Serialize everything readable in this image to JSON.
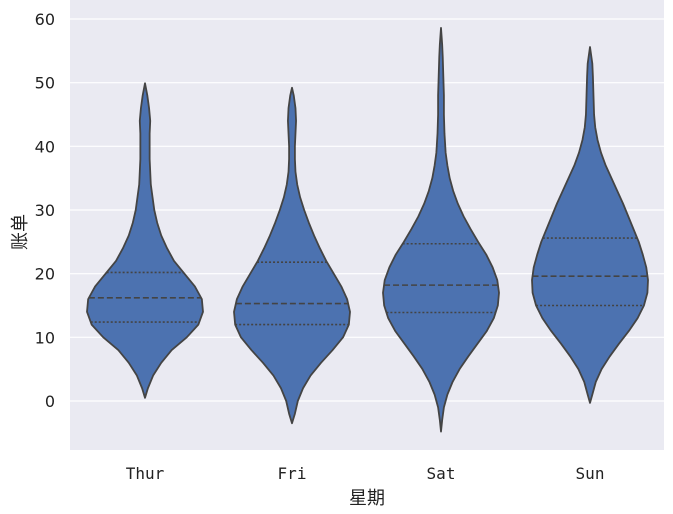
{
  "chart_data": {
    "type": "violin",
    "title": "",
    "xlabel": "星期",
    "ylabel": "账单",
    "categories": [
      "Thur",
      "Fri",
      "Sat",
      "Sun"
    ],
    "ylim": [
      -8,
      62
    ],
    "yticks": [
      0,
      10,
      20,
      30,
      40,
      50,
      60
    ],
    "grid": true,
    "background_color": "#eaeaf2",
    "violin_color": "#4c72b0",
    "edge_color": "#444444",
    "violins": [
      {
        "category": "Thur",
        "min": 0.5,
        "max": 49.9,
        "quartiles": [
          12.4,
          16.2,
          20.2
        ],
        "profile": [
          [
            0.5,
            0.0
          ],
          [
            2.0,
            0.05
          ],
          [
            4.0,
            0.14
          ],
          [
            6.0,
            0.28
          ],
          [
            8.0,
            0.46
          ],
          [
            10.0,
            0.72
          ],
          [
            12.0,
            0.92
          ],
          [
            14.0,
            1.0
          ],
          [
            16.0,
            0.98
          ],
          [
            18.0,
            0.86
          ],
          [
            20.0,
            0.68
          ],
          [
            22.0,
            0.5
          ],
          [
            24.0,
            0.38
          ],
          [
            26.0,
            0.28
          ],
          [
            28.0,
            0.21
          ],
          [
            30.0,
            0.16
          ],
          [
            32.0,
            0.13
          ],
          [
            34.0,
            0.1
          ],
          [
            36.0,
            0.09
          ],
          [
            38.0,
            0.08
          ],
          [
            40.0,
            0.08
          ],
          [
            42.0,
            0.08
          ],
          [
            44.0,
            0.09
          ],
          [
            46.0,
            0.07
          ],
          [
            48.0,
            0.04
          ],
          [
            49.9,
            0.0
          ]
        ]
      },
      {
        "category": "Fri",
        "min": -3.5,
        "max": 49.2,
        "quartiles": [
          12.0,
          15.3,
          21.8
        ],
        "profile": [
          [
            -3.5,
            0.0
          ],
          [
            -2.0,
            0.05
          ],
          [
            0.0,
            0.1
          ],
          [
            2.0,
            0.19
          ],
          [
            4.0,
            0.32
          ],
          [
            6.0,
            0.5
          ],
          [
            8.0,
            0.7
          ],
          [
            10.0,
            0.88
          ],
          [
            12.0,
            0.98
          ],
          [
            14.0,
            1.0
          ],
          [
            16.0,
            0.95
          ],
          [
            18.0,
            0.85
          ],
          [
            20.0,
            0.72
          ],
          [
            22.0,
            0.59
          ],
          [
            24.0,
            0.48
          ],
          [
            26.0,
            0.38
          ],
          [
            28.0,
            0.29
          ],
          [
            30.0,
            0.21
          ],
          [
            32.0,
            0.14
          ],
          [
            34.0,
            0.09
          ],
          [
            36.0,
            0.06
          ],
          [
            38.0,
            0.05
          ],
          [
            40.0,
            0.05
          ],
          [
            42.0,
            0.06
          ],
          [
            44.0,
            0.07
          ],
          [
            46.0,
            0.06
          ],
          [
            48.0,
            0.03
          ],
          [
            49.2,
            0.0
          ]
        ]
      },
      {
        "category": "Sat",
        "min": -4.8,
        "max": 58.6,
        "quartiles": [
          13.9,
          18.2,
          24.7
        ],
        "profile": [
          [
            -4.8,
            0.0
          ],
          [
            -3.0,
            0.02
          ],
          [
            -1.0,
            0.05
          ],
          [
            1.0,
            0.11
          ],
          [
            3.0,
            0.2
          ],
          [
            5.0,
            0.32
          ],
          [
            7.0,
            0.47
          ],
          [
            9.0,
            0.63
          ],
          [
            11.0,
            0.79
          ],
          [
            13.0,
            0.91
          ],
          [
            15.0,
            0.98
          ],
          [
            17.0,
            1.0
          ],
          [
            19.0,
            0.97
          ],
          [
            21.0,
            0.89
          ],
          [
            23.0,
            0.78
          ],
          [
            25.0,
            0.64
          ],
          [
            27.0,
            0.51
          ],
          [
            29.0,
            0.39
          ],
          [
            31.0,
            0.29
          ],
          [
            33.0,
            0.21
          ],
          [
            35.0,
            0.15
          ],
          [
            37.0,
            0.11
          ],
          [
            39.0,
            0.08
          ],
          [
            42.0,
            0.06
          ],
          [
            45.0,
            0.05
          ],
          [
            48.0,
            0.05
          ],
          [
            51.0,
            0.04
          ],
          [
            54.0,
            0.03
          ],
          [
            56.0,
            0.02
          ],
          [
            58.6,
            0.0
          ]
        ]
      },
      {
        "category": "Sun",
        "min": -0.3,
        "max": 55.6,
        "quartiles": [
          15.0,
          19.6,
          25.6
        ],
        "profile": [
          [
            -0.3,
            0.0
          ],
          [
            1.0,
            0.04
          ],
          [
            3.0,
            0.1
          ],
          [
            5.0,
            0.2
          ],
          [
            7.0,
            0.34
          ],
          [
            9.0,
            0.5
          ],
          [
            11.0,
            0.67
          ],
          [
            13.0,
            0.82
          ],
          [
            15.0,
            0.93
          ],
          [
            17.0,
            0.99
          ],
          [
            19.0,
            1.0
          ],
          [
            21.0,
            0.97
          ],
          [
            23.0,
            0.91
          ],
          [
            25.0,
            0.84
          ],
          [
            27.0,
            0.75
          ],
          [
            29.0,
            0.66
          ],
          [
            31.0,
            0.57
          ],
          [
            33.0,
            0.47
          ],
          [
            35.0,
            0.37
          ],
          [
            37.0,
            0.27
          ],
          [
            39.0,
            0.19
          ],
          [
            41.0,
            0.13
          ],
          [
            43.0,
            0.09
          ],
          [
            45.0,
            0.07
          ],
          [
            48.0,
            0.06
          ],
          [
            51.0,
            0.05
          ],
          [
            53.0,
            0.04
          ],
          [
            55.6,
            0.0
          ]
        ]
      }
    ]
  }
}
